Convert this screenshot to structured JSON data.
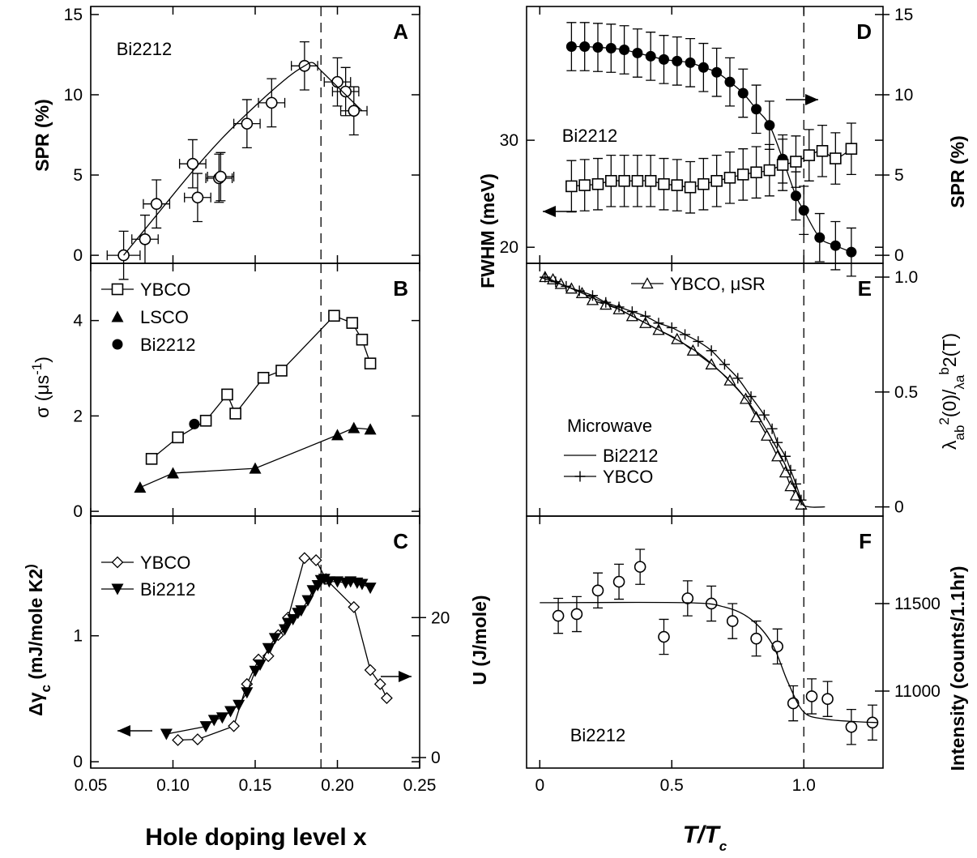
{
  "chart_data": [
    {
      "panel": "A",
      "type": "scatter",
      "annotation": "Bi2212",
      "ylabel": "SPR (%)",
      "xlim": [
        0.05,
        0.25
      ],
      "ylim": [
        -0.5,
        15.5
      ],
      "yticks": [
        "0",
        "5",
        "10",
        "15"
      ],
      "dashed_x": 0.19,
      "series": [
        {
          "marker": "open-circle",
          "x": [
            0.07,
            0.083,
            0.09,
            0.112,
            0.115,
            0.128,
            0.129,
            0.145,
            0.16,
            0.18,
            0.2,
            0.205,
            0.21
          ],
          "y": [
            0,
            1.0,
            3.2,
            5.7,
            3.6,
            4.8,
            4.9,
            8.2,
            9.5,
            11.8,
            10.8,
            10.2,
            9.0
          ],
          "yerr": [
            1.5,
            1.5,
            1.5,
            1.5,
            1.5,
            1.5,
            1.5,
            1.5,
            1.5,
            1.5,
            1.5,
            1.5,
            1.5
          ],
          "xerr": [
            0.01,
            0.008,
            0.008,
            0.008,
            0.008,
            0.008,
            0.008,
            0.008,
            0.008,
            0.008,
            0.008,
            0.008,
            0.008
          ]
        }
      ],
      "fit_x": [
        0.07,
        0.09,
        0.11,
        0.13,
        0.15,
        0.17,
        0.18,
        0.185,
        0.19,
        0.2,
        0.215
      ],
      "fit_y": [
        0,
        2.5,
        5,
        7.3,
        9.3,
        11.1,
        11.8,
        12.0,
        11.5,
        10.5,
        9.0
      ]
    },
    {
      "panel": "B",
      "type": "line",
      "ylabel": "σ (μs-1)",
      "xlim": [
        0.05,
        0.25
      ],
      "ylim": [
        -0.1,
        5.2
      ],
      "yticks": [
        "0",
        "2",
        "4"
      ],
      "dashed_x": 0.19,
      "series": [
        {
          "name": "YBCO",
          "marker": "open-square",
          "x": [
            0.087,
            0.103,
            0.12,
            0.133,
            0.138,
            0.155,
            0.166,
            0.198,
            0.209,
            0.215,
            0.22
          ],
          "y": [
            1.1,
            1.55,
            1.9,
            2.45,
            2.05,
            2.8,
            2.95,
            4.1,
            3.95,
            3.6,
            3.1
          ]
        },
        {
          "name": "LSCO",
          "marker": "filled-triangle",
          "x": [
            0.08,
            0.1,
            0.15,
            0.2,
            0.21,
            0.22
          ],
          "y": [
            0.5,
            0.8,
            0.9,
            1.6,
            1.75,
            1.72
          ]
        },
        {
          "name": "Bi2212",
          "marker": "filled-circle",
          "x": [
            0.113
          ],
          "y": [
            1.83
          ]
        }
      ]
    },
    {
      "panel": "C",
      "type": "line",
      "ylabel_left": "Δγc (mJ/mole K2)",
      "ylabel_right": "U (J/mole)",
      "xlim": [
        0.05,
        0.25
      ],
      "ylim": [
        -0.05,
        1.95
      ],
      "ylim_right": [
        -1.5,
        34.5
      ],
      "yticks": [
        "0",
        "1"
      ],
      "yticks_right": [
        "0",
        "20"
      ],
      "xticks": [
        "0.05",
        "0.10",
        "0.15",
        "0.20",
        "0.25"
      ],
      "xlabel": "Hole doping level x",
      "dashed_x": 0.19,
      "series": [
        {
          "name": "YBCO",
          "marker": "open-diamond",
          "axis": "right",
          "x": [
            0.103,
            0.115,
            0.137,
            0.145,
            0.152,
            0.158,
            0.164,
            0.17,
            0.18,
            0.187,
            0.193,
            0.21,
            0.22,
            0.226,
            0.23
          ],
          "y": [
            2.5,
            2.6,
            4.5,
            10.5,
            14,
            14.5,
            17.5,
            20,
            28.5,
            28.2,
            25.5,
            21.5,
            12.5,
            10.5,
            8.5
          ]
        },
        {
          "name": "Bi2212",
          "marker": "filled-inverted-triangle",
          "axis": "left",
          "x": [
            0.096,
            0.12,
            0.125,
            0.13,
            0.135,
            0.14,
            0.145,
            0.15,
            0.153,
            0.158,
            0.162,
            0.168,
            0.17,
            0.173,
            0.176,
            0.178,
            0.182,
            0.185,
            0.188,
            0.19,
            0.192,
            0.195,
            0.2,
            0.205,
            0.208,
            0.212,
            0.215,
            0.22
          ],
          "y": [
            0.22,
            0.28,
            0.33,
            0.35,
            0.4,
            0.45,
            0.55,
            0.72,
            0.77,
            0.9,
            0.98,
            1.05,
            1.1,
            1.13,
            1.18,
            1.2,
            1.28,
            1.36,
            1.4,
            1.44,
            1.45,
            1.43,
            1.43,
            1.42,
            1.43,
            1.42,
            1.41,
            1.38
          ]
        }
      ]
    },
    {
      "panel": "D",
      "type": "scatter",
      "annotation": "Bi2212",
      "ylabel_left": "FWHM (meV)",
      "ylabel_right": "SPR (%)",
      "xlim": [
        -0.05,
        1.3
      ],
      "ylim": [
        18.5,
        42.5
      ],
      "ylim_right": [
        -0.5,
        15.5
      ],
      "yticks": [
        "20",
        "30"
      ],
      "yticks_right": [
        "0",
        "5",
        "10",
        "15"
      ],
      "dashed_x": 1.0,
      "series": [
        {
          "name": "SPR",
          "marker": "filled-circle",
          "axis": "right",
          "x": [
            0.12,
            0.17,
            0.22,
            0.27,
            0.32,
            0.37,
            0.42,
            0.47,
            0.52,
            0.57,
            0.62,
            0.67,
            0.72,
            0.77,
            0.82,
            0.87,
            0.92,
            0.97,
            1.0,
            1.06,
            1.12,
            1.18
          ],
          "y": [
            13.0,
            13.0,
            12.95,
            12.9,
            12.8,
            12.6,
            12.4,
            12.2,
            12.1,
            12.0,
            11.7,
            11.4,
            10.8,
            10.1,
            9.1,
            8.1,
            6.0,
            3.7,
            2.8,
            1.1,
            0.6,
            0.2
          ],
          "yerr": [
            1.5,
            1.5,
            1.5,
            1.5,
            1.5,
            1.5,
            1.5,
            1.5,
            1.5,
            1.5,
            1.5,
            1.5,
            1.5,
            1.5,
            1.5,
            1.5,
            1.5,
            1.5,
            1.5,
            1.5,
            1.5,
            1.5
          ]
        },
        {
          "name": "FWHM",
          "marker": "open-square",
          "axis": "left",
          "x": [
            0.12,
            0.17,
            0.22,
            0.27,
            0.32,
            0.37,
            0.42,
            0.47,
            0.52,
            0.57,
            0.62,
            0.67,
            0.72,
            0.77,
            0.82,
            0.87,
            0.92,
            0.97,
            1.02,
            1.07,
            1.12,
            1.18
          ],
          "y": [
            25.7,
            25.8,
            25.9,
            26.2,
            26.2,
            26.2,
            26.2,
            25.9,
            25.8,
            25.6,
            25.9,
            26.2,
            26.5,
            26.8,
            27.0,
            27.2,
            27.7,
            28.0,
            28.6,
            29.0,
            28.3,
            29.2
          ],
          "yerr": [
            2.4,
            2.4,
            2.4,
            2.4,
            2.4,
            2.4,
            2.4,
            2.4,
            2.4,
            2.4,
            2.4,
            2.4,
            2.4,
            2.4,
            2.4,
            2.4,
            2.4,
            2.4,
            2.4,
            2.4,
            2.4,
            2.4
          ]
        }
      ]
    },
    {
      "panel": "E",
      "type": "line",
      "ylabel_right": "λab2(0)/λab2(T)",
      "xlim": [
        -0.05,
        1.3
      ],
      "ylim": [
        -0.04,
        1.06
      ],
      "yticks_right": [
        "0",
        "0.5",
        "1.0"
      ],
      "annotation": "Microwave",
      "dashed_x": 1.0,
      "series": [
        {
          "name": "YBCO, μSR",
          "marker": "open-triangle",
          "x": [
            0.02,
            0.05,
            0.08,
            0.12,
            0.16,
            0.2,
            0.25,
            0.3,
            0.35,
            0.4,
            0.45,
            0.52,
            0.58,
            0.65,
            0.72,
            0.78,
            0.82,
            0.86,
            0.9,
            0.93,
            0.95,
            0.97,
            0.99
          ],
          "y": [
            1.0,
            0.99,
            0.97,
            0.95,
            0.93,
            0.9,
            0.88,
            0.86,
            0.83,
            0.8,
            0.77,
            0.73,
            0.68,
            0.62,
            0.55,
            0.47,
            0.39,
            0.31,
            0.22,
            0.15,
            0.09,
            0.05,
            0.01
          ]
        },
        {
          "name": "Bi2212",
          "marker": "none",
          "x": [
            0.0,
            0.1,
            0.2,
            0.3,
            0.4,
            0.5,
            0.6,
            0.7,
            0.8,
            0.9,
            0.95,
            0.99,
            1.02,
            1.08
          ],
          "y": [
            1.0,
            0.96,
            0.91,
            0.86,
            0.8,
            0.74,
            0.67,
            0.57,
            0.44,
            0.25,
            0.13,
            0.02,
            0.0,
            0.0
          ]
        },
        {
          "name": "YBCO",
          "marker": "plus",
          "x": [
            0.02,
            0.06,
            0.1,
            0.15,
            0.2,
            0.25,
            0.3,
            0.35,
            0.4,
            0.45,
            0.5,
            0.55,
            0.6,
            0.65,
            0.7,
            0.75,
            0.8,
            0.85,
            0.88,
            0.9,
            0.93,
            0.95,
            0.97,
            0.99
          ],
          "y": [
            1.0,
            0.98,
            0.96,
            0.94,
            0.92,
            0.89,
            0.87,
            0.85,
            0.83,
            0.8,
            0.78,
            0.75,
            0.72,
            0.68,
            0.62,
            0.56,
            0.48,
            0.4,
            0.34,
            0.28,
            0.22,
            0.16,
            0.1,
            0.03
          ]
        }
      ]
    },
    {
      "panel": "F",
      "type": "scatter",
      "annotation": "Bi2212",
      "ylabel_right": "Intensity (counts/1.1hr)",
      "xlim": [
        -0.05,
        1.3
      ],
      "ylim": [
        10560,
        12000
      ],
      "yticks_right": [
        "11000",
        "11500"
      ],
      "xticks": [
        "0",
        "0.5",
        "1.0"
      ],
      "xlabel": "T/Tc",
      "dashed_x": 1.0,
      "series": [
        {
          "marker": "open-circle",
          "x": [
            0.07,
            0.14,
            0.22,
            0.3,
            0.38,
            0.47,
            0.56,
            0.65,
            0.73,
            0.82,
            0.9,
            0.96,
            1.03,
            1.09,
            1.18,
            1.26
          ],
          "y": [
            11430,
            11440,
            11575,
            11625,
            11710,
            11310,
            11530,
            11500,
            11400,
            11300,
            11255,
            10930,
            10970,
            10955,
            10795,
            10820
          ],
          "yerr": [
            100,
            100,
            100,
            100,
            100,
            100,
            100,
            100,
            100,
            100,
            100,
            100,
            100,
            100,
            100,
            100
          ]
        }
      ],
      "fit_x": [
        0.0,
        0.55,
        0.7,
        0.8,
        0.88,
        0.94,
        1.0,
        1.08,
        1.2,
        1.28
      ],
      "fit_y": [
        11505,
        11505,
        11480,
        11410,
        11270,
        11050,
        10880,
        10840,
        10825,
        10820
      ]
    }
  ]
}
